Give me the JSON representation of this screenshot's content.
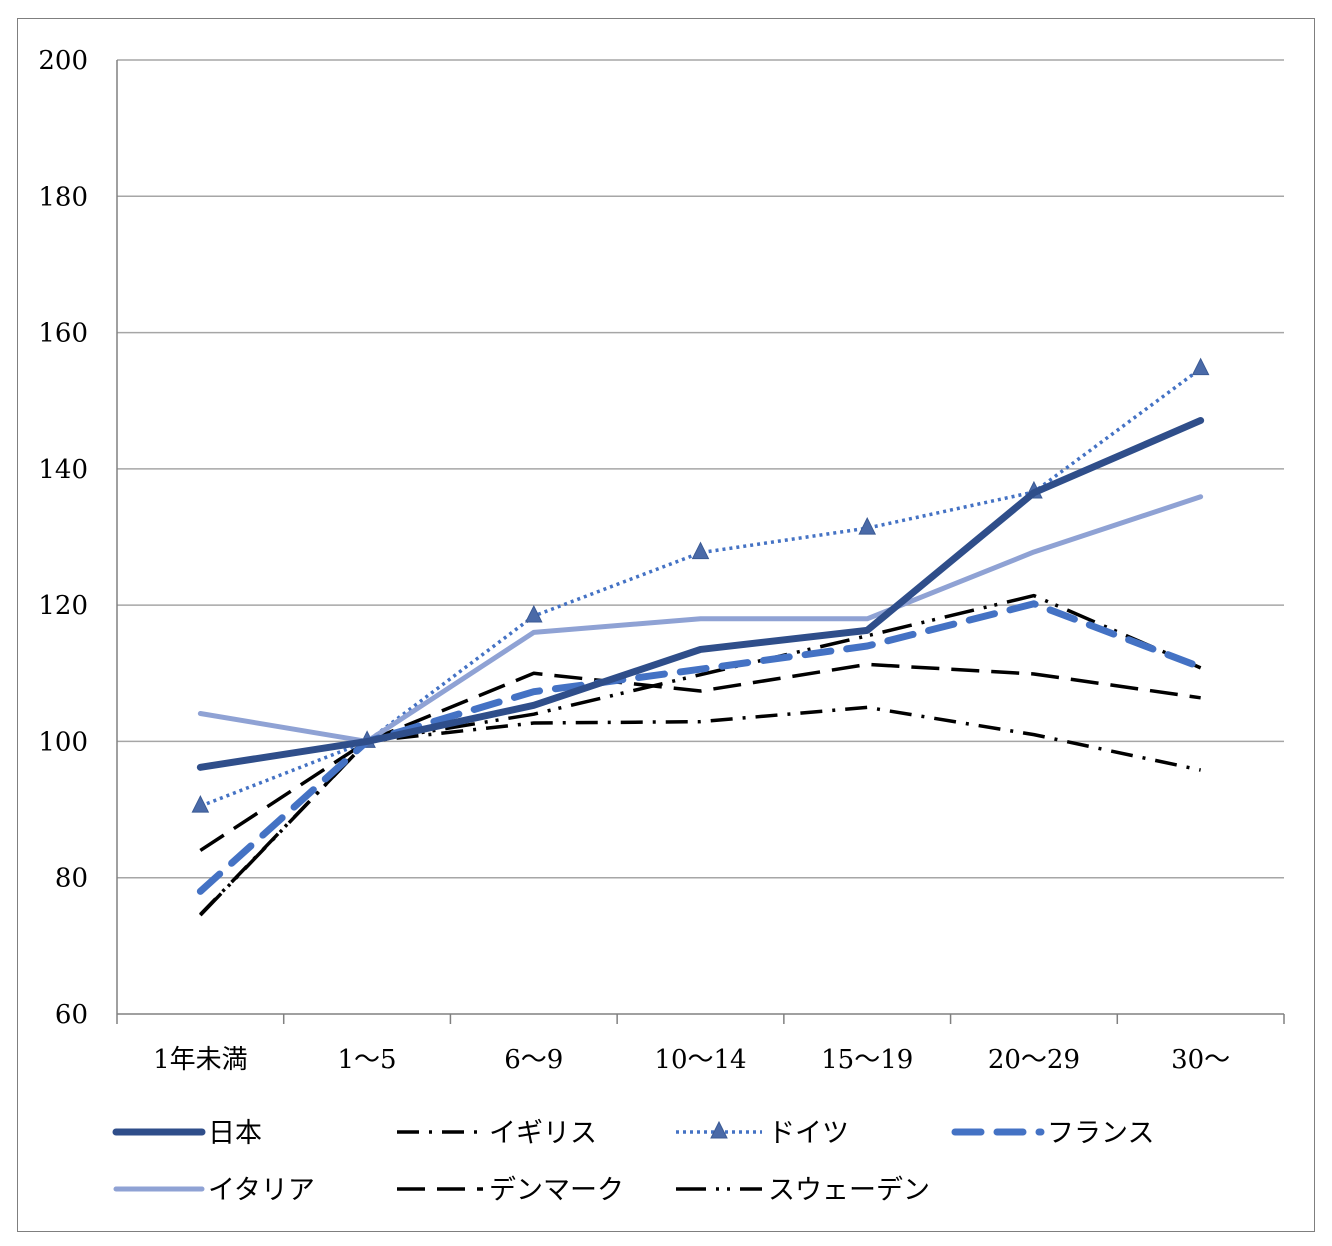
{
  "chart_data": {
    "type": "line",
    "title": "",
    "xlabel": "",
    "ylabel": "",
    "categories": [
      "1年未満",
      "1～5",
      "6～9",
      "10～14",
      "15～19",
      "20～29",
      "30～"
    ],
    "ylim": [
      60,
      200
    ],
    "yticks": [
      60,
      80,
      100,
      120,
      140,
      160,
      180,
      200
    ],
    "grid": true,
    "legend_position": "bottom",
    "series": [
      {
        "name": "日本",
        "values": [
          96.2,
          100,
          105.3,
          113.5,
          116.3,
          136.5,
          147.1
        ],
        "color": "#2f4e8a",
        "style": "solid-thick"
      },
      {
        "name": "イギリス",
        "values": [
          74.6,
          100,
          102.7,
          102.9,
          105.0,
          101.0,
          95.8
        ],
        "color": "#000000",
        "style": "dash-dot"
      },
      {
        "name": "ドイツ",
        "values": [
          90.5,
          100,
          118.4,
          127.7,
          131.3,
          136.6,
          154.7
        ],
        "color": "#4472c4",
        "style": "dotted-triangle"
      },
      {
        "name": "フランス",
        "values": [
          78.0,
          100,
          107.3,
          110.6,
          114.0,
          120.2,
          110.9
        ],
        "color": "#4472c4",
        "style": "dash-thick"
      },
      {
        "name": "イタリア",
        "values": [
          104.1,
          100,
          116.0,
          118.0,
          118.0,
          127.8,
          135.9
        ],
        "color": "#8fa2d4",
        "style": "solid"
      },
      {
        "name": "デンマーク",
        "values": [
          84.0,
          100,
          110.0,
          107.4,
          111.3,
          109.9,
          106.4
        ],
        "color": "#000000",
        "style": "long-dash"
      },
      {
        "name": "スウェーデン",
        "values": [
          74.5,
          100,
          104.0,
          109.8,
          115.5,
          121.4,
          110.8
        ],
        "color": "#000000",
        "style": "long-dash-dot-dot"
      }
    ]
  }
}
